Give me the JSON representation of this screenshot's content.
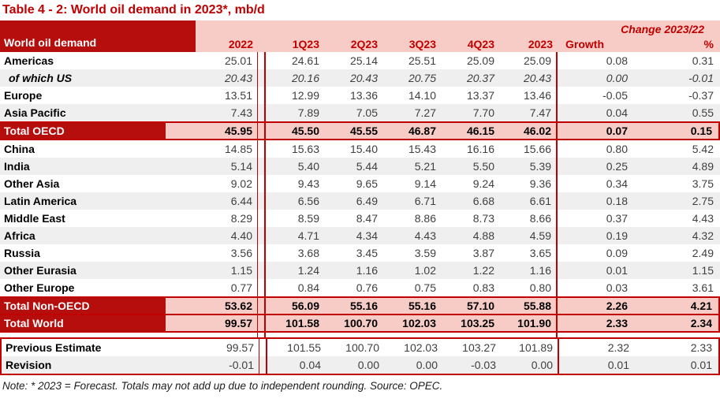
{
  "title": "Table 4 - 2: World oil demand in 2023*, mb/d",
  "table": {
    "corner_label": "World oil demand",
    "change_header": "Change 2023/22",
    "columns": [
      "2022",
      "1Q23",
      "2Q23",
      "3Q23",
      "4Q23",
      "2023"
    ],
    "change_columns": [
      "Growth",
      "%"
    ],
    "colors": {
      "dark_red": "#b60d0d",
      "border_red": "#c00000",
      "header_text_red": "#c00000",
      "pink": "#f8ccc6",
      "alt_row_gray": "#efefef"
    },
    "rows": [
      {
        "label": "Americas",
        "style": "normal",
        "values": [
          "25.01",
          "24.61",
          "25.14",
          "25.51",
          "25.09",
          "25.09",
          "0.08",
          "0.31"
        ]
      },
      {
        "label": "of which US",
        "style": "italic",
        "values": [
          "20.43",
          "20.16",
          "20.43",
          "20.75",
          "20.37",
          "20.43",
          "0.00",
          "-0.01"
        ]
      },
      {
        "label": "Europe",
        "style": "normal",
        "values": [
          "13.51",
          "12.99",
          "13.36",
          "14.10",
          "13.37",
          "13.46",
          "-0.05",
          "-0.37"
        ]
      },
      {
        "label": "Asia Pacific",
        "style": "normal",
        "values": [
          "7.43",
          "7.89",
          "7.05",
          "7.27",
          "7.70",
          "7.47",
          "0.04",
          "0.55"
        ]
      },
      {
        "label": "Total OECD",
        "style": "total",
        "values": [
          "45.95",
          "45.50",
          "45.55",
          "46.87",
          "46.15",
          "46.02",
          "0.07",
          "0.15"
        ]
      },
      {
        "label": "China",
        "style": "normal",
        "values": [
          "14.85",
          "15.63",
          "15.40",
          "15.43",
          "16.16",
          "15.66",
          "0.80",
          "5.42"
        ]
      },
      {
        "label": "India",
        "style": "normal",
        "values": [
          "5.14",
          "5.40",
          "5.44",
          "5.21",
          "5.50",
          "5.39",
          "0.25",
          "4.89"
        ]
      },
      {
        "label": "Other Asia",
        "style": "normal",
        "values": [
          "9.02",
          "9.43",
          "9.65",
          "9.14",
          "9.24",
          "9.36",
          "0.34",
          "3.75"
        ]
      },
      {
        "label": "Latin America",
        "style": "normal",
        "values": [
          "6.44",
          "6.56",
          "6.49",
          "6.71",
          "6.68",
          "6.61",
          "0.18",
          "2.75"
        ]
      },
      {
        "label": "Middle East",
        "style": "normal",
        "values": [
          "8.29",
          "8.59",
          "8.47",
          "8.86",
          "8.73",
          "8.66",
          "0.37",
          "4.43"
        ]
      },
      {
        "label": "Africa",
        "style": "normal",
        "values": [
          "4.40",
          "4.71",
          "4.34",
          "4.43",
          "4.88",
          "4.59",
          "0.19",
          "4.32"
        ]
      },
      {
        "label": "Russia",
        "style": "normal",
        "values": [
          "3.56",
          "3.68",
          "3.45",
          "3.59",
          "3.87",
          "3.65",
          "0.09",
          "2.49"
        ]
      },
      {
        "label": "Other Eurasia",
        "style": "normal",
        "values": [
          "1.15",
          "1.24",
          "1.16",
          "1.02",
          "1.22",
          "1.16",
          "0.01",
          "1.15"
        ]
      },
      {
        "label": "Other Europe",
        "style": "normal",
        "values": [
          "0.77",
          "0.84",
          "0.76",
          "0.75",
          "0.83",
          "0.80",
          "0.03",
          "3.61"
        ]
      },
      {
        "label": "Total Non-OECD",
        "style": "total",
        "values": [
          "53.62",
          "56.09",
          "55.16",
          "55.16",
          "57.10",
          "55.88",
          "2.26",
          "4.21"
        ]
      },
      {
        "label": "Total World",
        "style": "total",
        "values": [
          "99.57",
          "101.58",
          "100.70",
          "102.03",
          "103.25",
          "101.90",
          "2.33",
          "2.34"
        ]
      }
    ],
    "footer_rows": [
      {
        "label": "Previous Estimate",
        "values": [
          "99.57",
          "101.55",
          "100.70",
          "102.03",
          "103.27",
          "101.89",
          "2.32",
          "2.33"
        ]
      },
      {
        "label": "Revision",
        "values": [
          "-0.01",
          "0.04",
          "0.00",
          "0.00",
          "-0.03",
          "0.00",
          "0.01",
          "0.01"
        ]
      }
    ]
  },
  "note": "Note: * 2023 = Forecast. Totals may not add up due to independent rounding. Source: OPEC."
}
